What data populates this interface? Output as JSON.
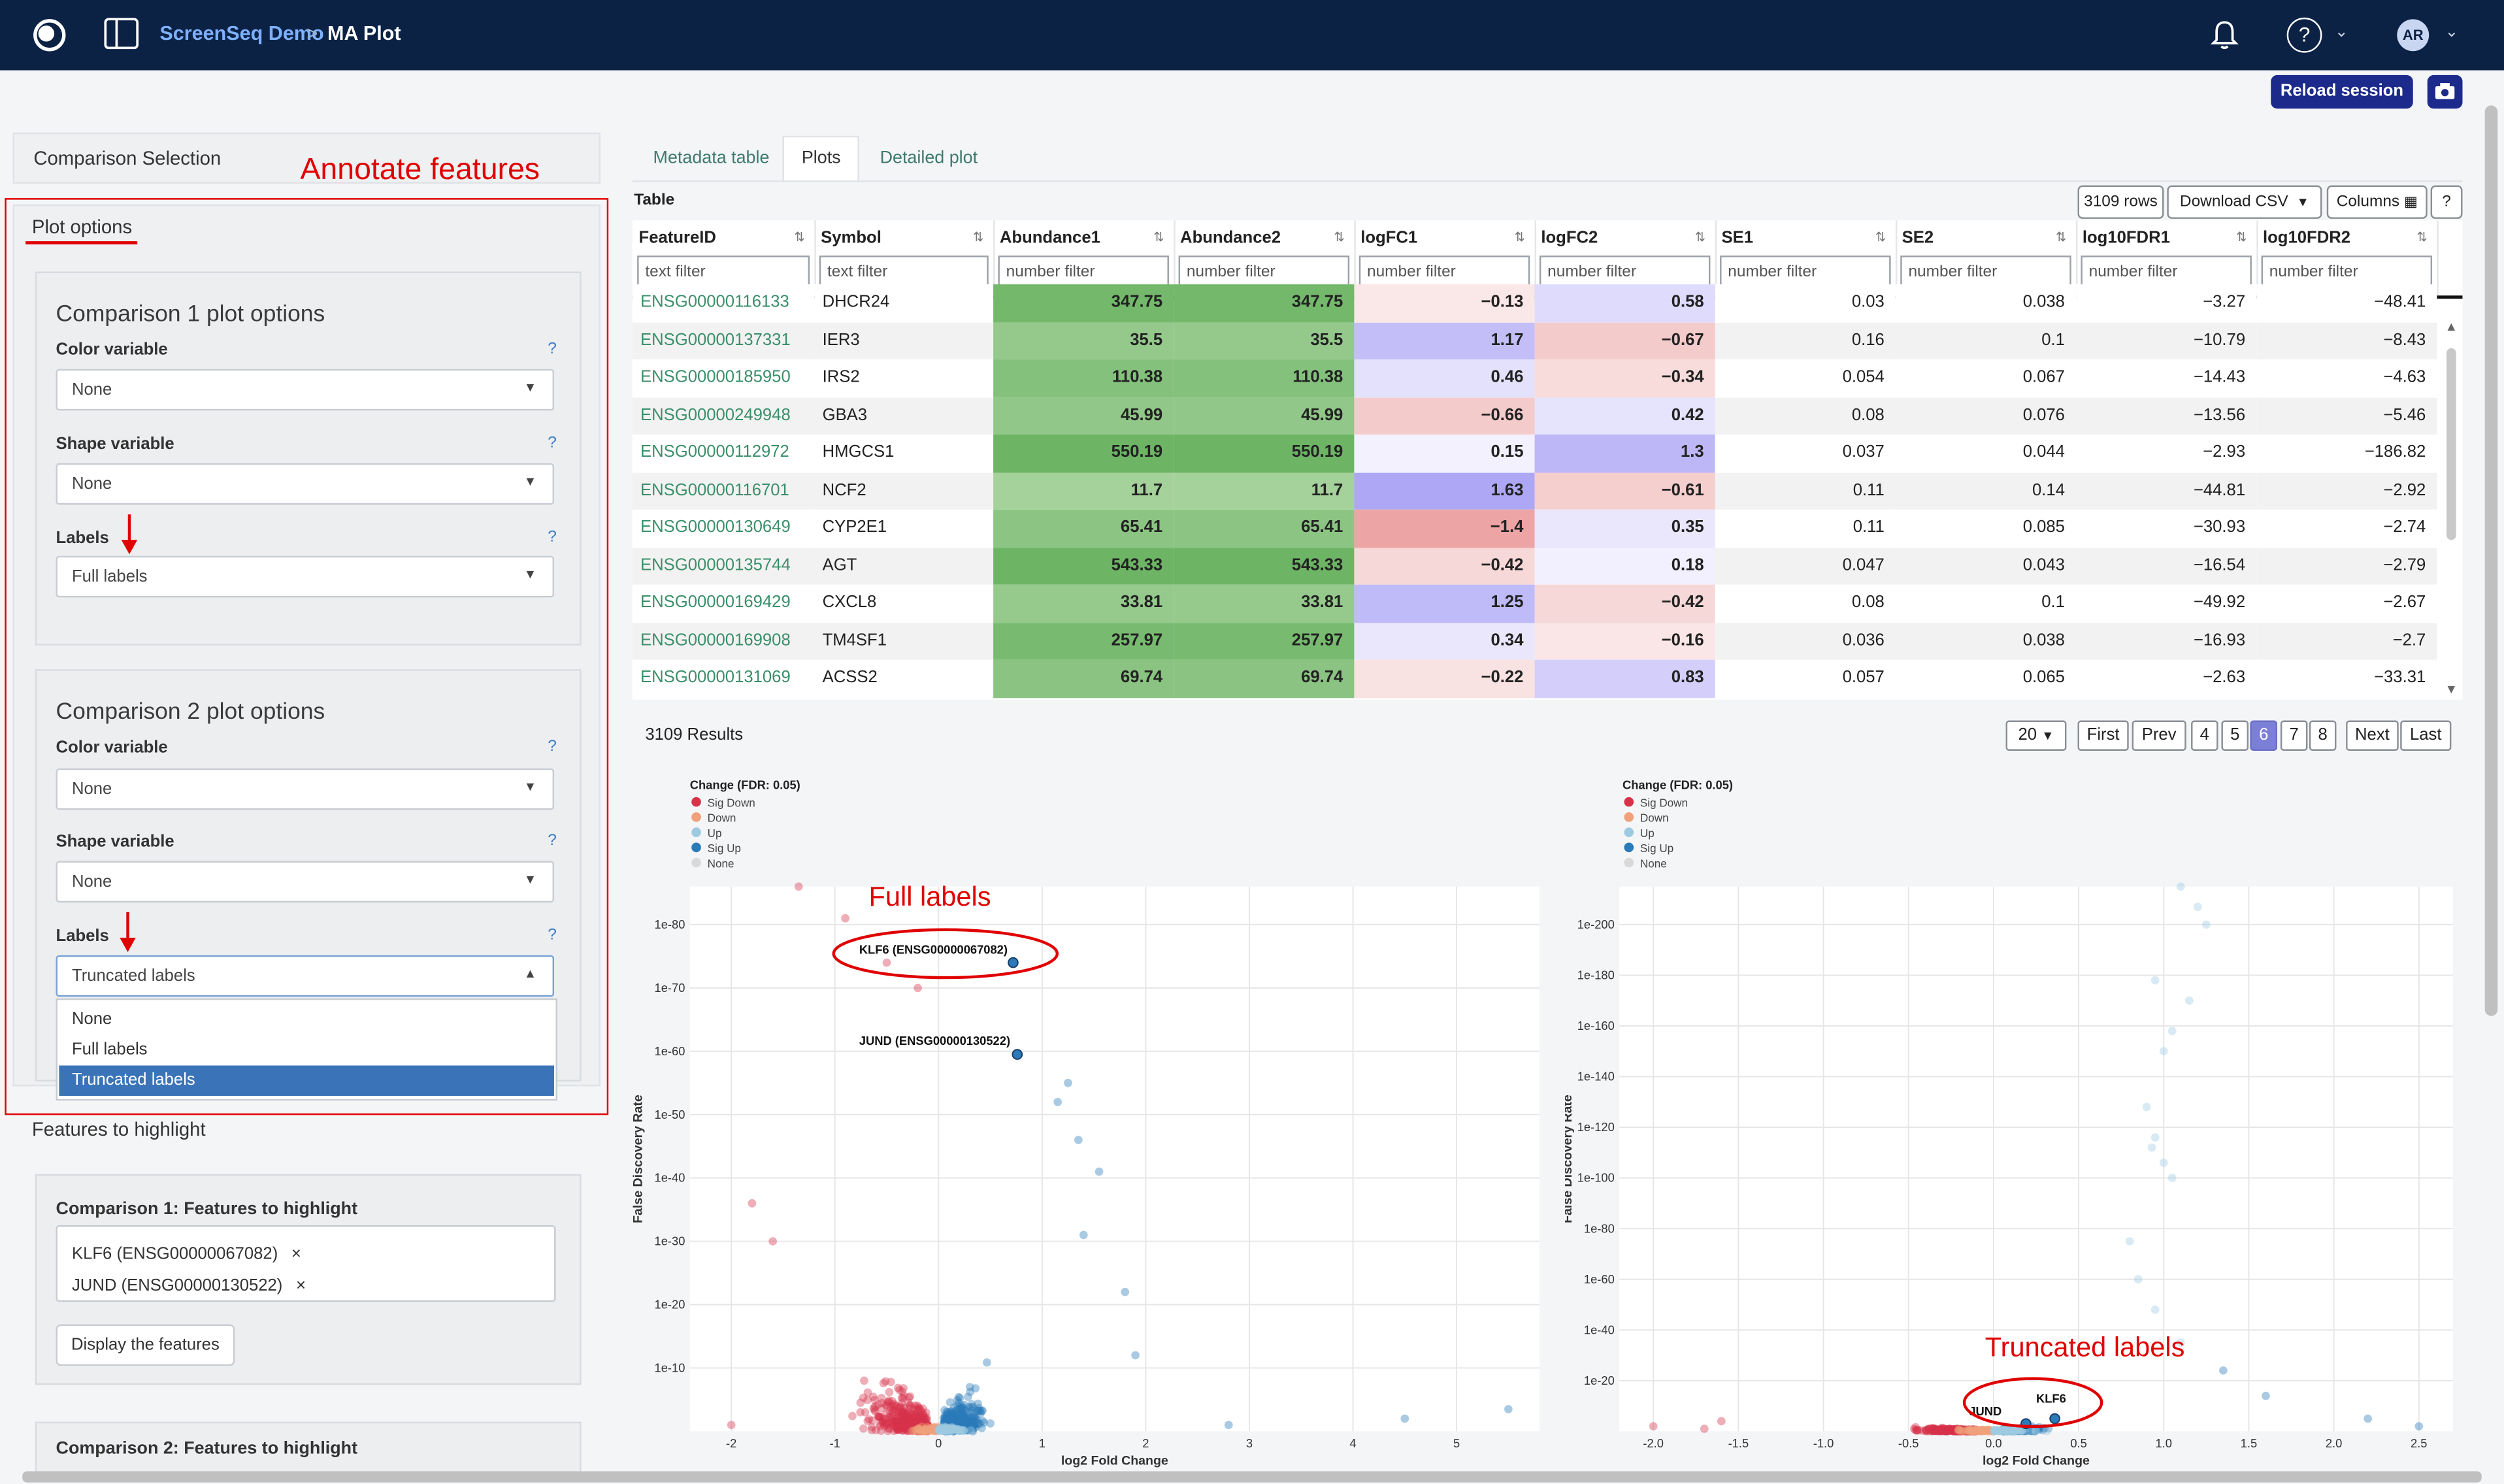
{
  "app": {
    "breadcrumb_project": "ScreenSeq Demo",
    "breadcrumb_sep": ">",
    "page": "MA Plot",
    "avatar": "AR",
    "reload_label": "Reload session",
    "help_glyph": "?"
  },
  "left": {
    "comparison_selection": "Comparison Selection",
    "plot_options": "Plot options",
    "annotate_caption": "Annotate features",
    "comp1": {
      "title": "Comparison 1 plot options",
      "color_label": "Color variable",
      "color_value": "None",
      "shape_label": "Shape variable",
      "shape_value": "None",
      "labels_label": "Labels",
      "labels_value": "Full labels"
    },
    "comp2": {
      "title": "Comparison 2 plot options",
      "color_label": "Color variable",
      "color_value": "None",
      "shape_label": "Shape variable",
      "shape_value": "None",
      "labels_label": "Labels",
      "labels_value": "Truncated labels"
    },
    "help_mark": "?",
    "dropdown_options": [
      "None",
      "Full labels",
      "Truncated labels"
    ],
    "features_to_highlight": "Features to highlight",
    "f1_title": "Comparison 1: Features to highlight",
    "f1_tags": [
      "KLF6 (ENSG00000067082)",
      "JUND (ENSG00000130522)"
    ],
    "tag_remove": "×",
    "display_btn": "Display the features",
    "f2_title": "Comparison 2: Features to highlight"
  },
  "tabs": [
    "Metadata table",
    "Plots",
    "Detailed plot"
  ],
  "table": {
    "title": "Table",
    "rows_btn": "3109 rows",
    "download_btn": "Download CSV",
    "columns_btn": "Columns",
    "help_btn": "?",
    "columns": [
      "FeatureID",
      "Symbol",
      "Abundance1",
      "Abundance2",
      "logFC1",
      "logFC2",
      "SE1",
      "SE2",
      "log10FDR1",
      "log10FDR2"
    ],
    "filters": [
      "text filter",
      "text filter",
      "number filter",
      "number filter",
      "number filter",
      "number filter",
      "number filter",
      "number filter",
      "number filter",
      "number filter"
    ],
    "partial_row": [
      "ENSG00000116133",
      "DHCR24",
      "347.75",
      "347.75",
      "−0.13",
      "0.58",
      "0.03",
      "0.038",
      "−3.27",
      "−48.41"
    ],
    "rows": [
      [
        "ENSG00000137331",
        "IER3",
        "35.5",
        "35.5",
        "1.17",
        "−0.67",
        "0.16",
        "0.1",
        "−10.79",
        "−8.43"
      ],
      [
        "ENSG00000185950",
        "IRS2",
        "110.38",
        "110.38",
        "0.46",
        "−0.34",
        "0.054",
        "0.067",
        "−14.43",
        "−4.63"
      ],
      [
        "ENSG00000249948",
        "GBA3",
        "45.99",
        "45.99",
        "−0.66",
        "0.42",
        "0.08",
        "0.076",
        "−13.56",
        "−5.46"
      ],
      [
        "ENSG00000112972",
        "HMGCS1",
        "550.19",
        "550.19",
        "0.15",
        "1.3",
        "0.037",
        "0.044",
        "−2.93",
        "−186.82"
      ],
      [
        "ENSG00000116701",
        "NCF2",
        "11.7",
        "11.7",
        "1.63",
        "−0.61",
        "0.11",
        "0.14",
        "−44.81",
        "−2.92"
      ],
      [
        "ENSG00000130649",
        "CYP2E1",
        "65.41",
        "65.41",
        "−1.4",
        "0.35",
        "0.11",
        "0.085",
        "−30.93",
        "−2.74"
      ],
      [
        "ENSG00000135744",
        "AGT",
        "543.33",
        "543.33",
        "−0.42",
        "0.18",
        "0.047",
        "0.043",
        "−16.54",
        "−2.79"
      ],
      [
        "ENSG00000169429",
        "CXCL8",
        "33.81",
        "33.81",
        "1.25",
        "−0.42",
        "0.08",
        "0.1",
        "−49.92",
        "−2.67"
      ],
      [
        "ENSG00000169908",
        "TM4SF1",
        "257.97",
        "257.97",
        "0.34",
        "−0.16",
        "0.036",
        "0.038",
        "−16.93",
        "−2.7"
      ],
      [
        "ENSG00000131069",
        "ACSS2",
        "69.74",
        "69.74",
        "−0.22",
        "0.83",
        "0.057",
        "0.065",
        "−2.63",
        "−33.31"
      ]
    ],
    "results": "3109 Results",
    "page_size": "20",
    "pager": [
      "First",
      "Prev",
      "4",
      "5",
      "6",
      "7",
      "8",
      "Next",
      "Last"
    ],
    "current_page": "6"
  },
  "colors": {
    "sig_down": "#d6334b",
    "down": "#f0a07a",
    "up": "#9ecae1",
    "sig_up": "#2b7bb9",
    "none": "#d9d9d9",
    "accent_red": "#e00000",
    "nav": "#0b2245"
  },
  "legend": {
    "title": "Change (FDR: 0.05)",
    "items": [
      "Sig Down",
      "Down",
      "Up",
      "Sig Up",
      "None"
    ]
  },
  "annotations": {
    "full_labels": "Full labels",
    "truncated_labels": "Truncated labels"
  },
  "chart_data": [
    {
      "type": "scatter",
      "title": "",
      "xlabel": "log2 Fold Change",
      "ylabel": "False Discovery Rate",
      "x_ticks": [
        "-2",
        "-1",
        "0",
        "1",
        "2",
        "3",
        "4",
        "5"
      ],
      "y_ticks": [
        "1e-10",
        "1e-20",
        "1e-30",
        "1e-40",
        "1e-50",
        "1e-60",
        "1e-70",
        "1e-80"
      ],
      "xlim": [
        -2.4,
        5.8
      ],
      "ylim_neg_log10": [
        0,
        86
      ],
      "highlighted": [
        {
          "label": "KLF6 (ENSG00000067082)",
          "log2fc": 0.72,
          "neg_log10_fdr": 74
        },
        {
          "label": "JUND (ENSG00000130522)",
          "log2fc": 0.76,
          "neg_log10_fdr": 59.5
        }
      ],
      "legend": "top-left"
    },
    {
      "type": "scatter",
      "title": "",
      "xlabel": "log2 Fold Change",
      "ylabel": "False Discovery Rate",
      "x_ticks": [
        "-2.0",
        "-1.5",
        "-1.0",
        "-0.5",
        "0.0",
        "0.5",
        "1.0",
        "1.5",
        "2.0",
        "2.5"
      ],
      "y_ticks": [
        "1e-20",
        "1e-40",
        "1e-60",
        "1e-80",
        "1e-100",
        "1e-120",
        "1e-140",
        "1e-160",
        "1e-180",
        "1e-200"
      ],
      "xlim": [
        -2.2,
        2.7
      ],
      "ylim_neg_log10": [
        0,
        215
      ],
      "highlighted": [
        {
          "label": "KLF6",
          "log2fc": 0.36,
          "neg_log10_fdr": 5
        },
        {
          "label": "JUND",
          "log2fc": 0.19,
          "neg_log10_fdr": 3
        }
      ],
      "legend": "top-left"
    }
  ]
}
